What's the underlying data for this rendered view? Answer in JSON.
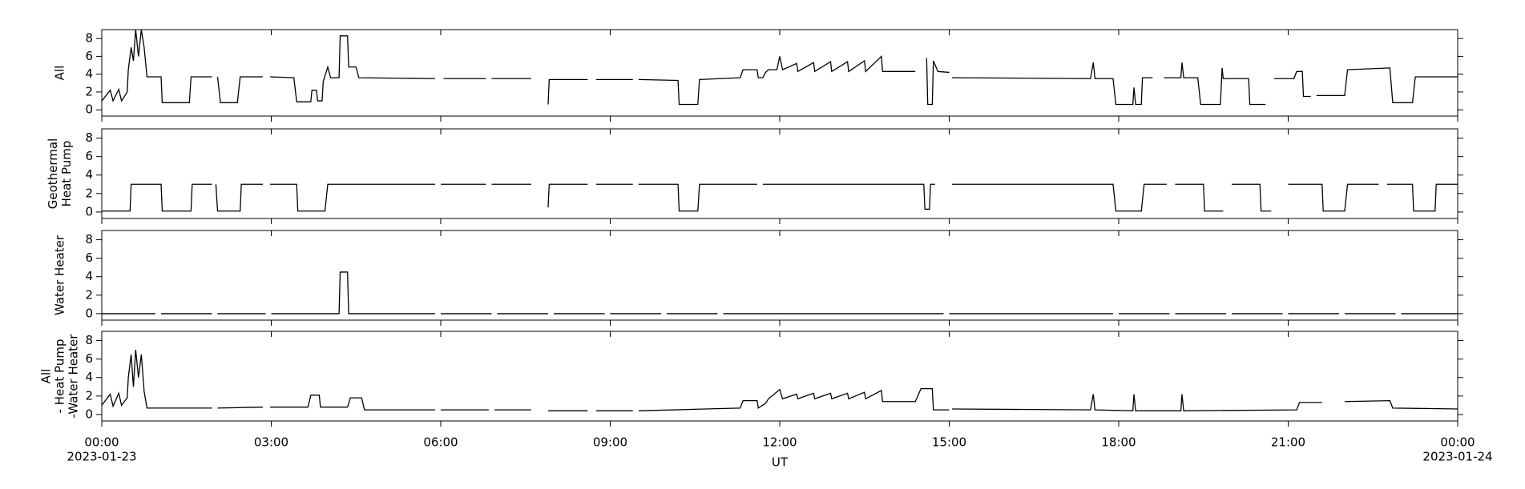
{
  "chart_data": [
    {
      "type": "line",
      "ylabel": [
        "All"
      ],
      "ylim": [
        -0.7,
        9
      ],
      "yticks": [
        0,
        2,
        4,
        6,
        8
      ],
      "color": "#000000",
      "x": [
        0,
        0.15,
        0.2,
        0.3,
        0.35,
        0.45,
        0.47,
        0.52,
        0.56,
        0.6,
        0.65,
        0.7,
        0.75,
        0.8,
        1.05,
        1.07,
        1.55,
        1.58,
        1.95,
        2.0,
        2.05,
        2.1,
        2.4,
        2.45,
        2.85,
        2.9,
        2.98,
        3.4,
        3.45,
        3.7,
        3.72,
        3.8,
        3.82,
        3.9,
        3.92,
        4.0,
        4.05,
        4.2,
        4.22,
        4.35,
        4.37,
        4.5,
        4.55,
        5.9,
        6.0,
        6.05,
        6.8,
        6.85,
        6.9,
        7.6,
        7.65,
        7.9,
        7.92,
        8.6,
        8.65,
        8.75,
        9.4,
        9.45,
        9.5,
        10.2,
        10.22,
        10.55,
        10.58,
        11.3,
        11.35,
        11.6,
        11.62,
        11.7,
        11.75,
        11.8,
        11.95,
        12.0,
        12.05,
        12.3,
        12.32,
        12.6,
        12.62,
        12.9,
        12.92,
        13.2,
        13.22,
        13.5,
        13.52,
        13.8,
        13.82,
        14.4,
        14.45,
        14.6,
        14.62,
        14.7,
        14.72,
        14.8,
        15.0,
        15.02,
        15.05,
        17.5,
        17.55,
        17.58,
        17.9,
        17.95,
        18.25,
        18.27,
        18.3,
        18.4,
        18.42,
        18.6,
        18.7,
        18.8,
        19.1,
        19.12,
        19.15,
        19.4,
        19.45,
        19.8,
        19.83,
        19.85,
        20.3,
        20.32,
        20.6,
        20.7,
        20.75,
        21.1,
        21.15,
        21.25,
        21.27,
        21.4,
        21.45,
        21.5,
        22.0,
        22.05,
        22.8,
        22.85,
        23.2,
        23.25,
        24
      ],
      "values": [
        1.0,
        2.2,
        1.0,
        2.3,
        1.0,
        2.0,
        4.5,
        7,
        5.5,
        9,
        6,
        9,
        7,
        3.7,
        3.7,
        0.8,
        0.8,
        3.7,
        3.7,
        null,
        3.7,
        0.8,
        0.8,
        3.7,
        3.7,
        null,
        3.7,
        3.6,
        0.9,
        0.9,
        2.2,
        2.2,
        1.0,
        1.0,
        3.2,
        4.8,
        3.6,
        3.6,
        8.3,
        8.3,
        4.8,
        4.8,
        3.6,
        3.5,
        null,
        3.5,
        3.5,
        null,
        3.5,
        3.5,
        null,
        0.6,
        3.4,
        3.4,
        null,
        3.4,
        3.4,
        null,
        3.4,
        3.3,
        0.6,
        0.6,
        3.4,
        3.6,
        4.5,
        4.5,
        3.6,
        3.6,
        4.2,
        4.5,
        4.5,
        6,
        4.5,
        5.2,
        4.3,
        5.3,
        4.3,
        5.4,
        4.3,
        5.4,
        4.3,
        5.5,
        4.3,
        6,
        4.3,
        4.3,
        null,
        5.8,
        0.6,
        0.6,
        5.5,
        4.3,
        4.2,
        null,
        3.6,
        3.5,
        5.3,
        3.5,
        3.5,
        0.6,
        0.6,
        2.5,
        0.6,
        0.6,
        3.6,
        3.6,
        null,
        3.6,
        3.6,
        5.3,
        3.6,
        3.6,
        0.6,
        0.6,
        4.7,
        3.5,
        3.5,
        0.6,
        0.6,
        null,
        3.5,
        3.5,
        4.3,
        4.3,
        1.5,
        1.5,
        null,
        1.6,
        1.6,
        4.5,
        4.7,
        0.8,
        0.8,
        3.7,
        3.7
      ]
    },
    {
      "type": "line",
      "ylabel": [
        "Geothermal",
        "Heat Pump"
      ],
      "ylim": [
        -0.7,
        9
      ],
      "yticks": [
        0,
        2,
        4,
        6,
        8
      ],
      "color": "#000000",
      "x": [
        0,
        0.5,
        0.52,
        1.05,
        1.07,
        1.58,
        1.6,
        1.95,
        1.98,
        2.02,
        2.05,
        2.45,
        2.47,
        2.85,
        2.9,
        2.98,
        3.45,
        3.47,
        3.95,
        4.0,
        5.9,
        5.95,
        6.0,
        6.8,
        6.85,
        6.9,
        7.6,
        7.7,
        7.9,
        7.92,
        8.6,
        8.65,
        8.75,
        9.4,
        9.45,
        9.5,
        10.2,
        10.22,
        10.55,
        10.58,
        11.6,
        11.65,
        11.7,
        14.55,
        14.57,
        14.65,
        14.67,
        14.75,
        14.9,
        15.05,
        17.9,
        17.95,
        18.4,
        18.45,
        18.85,
        18.9,
        19.0,
        19.5,
        19.52,
        19.85,
        19.9,
        20.0,
        20.5,
        20.52,
        20.7,
        20.8,
        21.0,
        21.6,
        21.62,
        22.0,
        22.05,
        22.6,
        22.7,
        22.75,
        23.2,
        23.22,
        23.6,
        23.62,
        24
      ],
      "values": [
        0.1,
        0.1,
        3,
        3,
        0.1,
        0.1,
        3,
        3,
        null,
        3,
        0.1,
        0.1,
        3,
        3,
        null,
        3,
        3,
        0.1,
        0.1,
        3,
        3,
        null,
        3,
        3,
        null,
        3,
        3,
        null,
        0.5,
        3,
        3,
        null,
        3,
        3,
        null,
        3,
        3,
        0.1,
        0.1,
        3,
        3,
        null,
        3,
        3,
        0.3,
        0.3,
        3,
        3,
        null,
        3,
        3,
        0.1,
        0.1,
        3,
        3,
        null,
        3,
        3,
        0.1,
        0.1,
        null,
        3,
        3,
        0.1,
        0.1,
        null,
        3,
        3,
        0.1,
        0.1,
        3,
        3,
        null,
        3,
        3,
        0.1,
        0.1,
        3,
        3
      ]
    },
    {
      "type": "line",
      "ylabel": [
        "Water Heater"
      ],
      "ylim": [
        -0.7,
        9
      ],
      "yticks": [
        0,
        2,
        4,
        6,
        8
      ],
      "color": "#000000",
      "x": [
        0,
        0.95,
        1.0,
        1.05,
        1.95,
        2.0,
        2.05,
        2.9,
        2.95,
        3.0,
        4.2,
        4.22,
        4.35,
        4.37,
        5.9,
        5.95,
        6.0,
        6.9,
        6.95,
        7.0,
        7.9,
        7.95,
        8.0,
        8.9,
        8.95,
        9.0,
        9.9,
        9.95,
        10.0,
        10.9,
        10.95,
        11.0,
        14.9,
        14.95,
        15.0,
        17.9,
        17.95,
        18.0,
        18.9,
        18.95,
        19.0,
        19.9,
        19.95,
        20.0,
        20.9,
        20.95,
        21.0,
        21.9,
        21.95,
        22.0,
        22.9,
        22.95,
        23.0,
        24
      ],
      "values": [
        0,
        0,
        null,
        0,
        0,
        null,
        0,
        0,
        null,
        0,
        0,
        4.5,
        4.5,
        0,
        0,
        null,
        0,
        0,
        null,
        0,
        0,
        null,
        0,
        0,
        null,
        0,
        0,
        null,
        0,
        0,
        null,
        0,
        0,
        null,
        0,
        0,
        null,
        0,
        0,
        null,
        0,
        0,
        null,
        0,
        0,
        null,
        0,
        0,
        null,
        0,
        0,
        null,
        0,
        0
      ]
    },
    {
      "type": "line",
      "ylabel": [
        "All",
        "- Heat Pump",
        "-Water Heater"
      ],
      "ylim": [
        -0.7,
        9
      ],
      "yticks": [
        0,
        2,
        4,
        6,
        8
      ],
      "color": "#000000",
      "xlabel": "UT",
      "xlim": [
        0,
        24
      ],
      "xticks": [
        {
          "value": 0,
          "label": "00:00"
        },
        {
          "value": 3,
          "label": "03:00"
        },
        {
          "value": 6,
          "label": "06:00"
        },
        {
          "value": 9,
          "label": "09:00"
        },
        {
          "value": 12,
          "label": "12:00"
        },
        {
          "value": 15,
          "label": "15:00"
        },
        {
          "value": 18,
          "label": "18:00"
        },
        {
          "value": 21,
          "label": "21:00"
        },
        {
          "value": 24,
          "label": "00:00"
        }
      ],
      "date_labels": [
        {
          "value": 0,
          "label": "2023-01-23"
        },
        {
          "value": 24,
          "label": "2023-01-24"
        }
      ],
      "x": [
        0,
        0.15,
        0.2,
        0.3,
        0.35,
        0.45,
        0.47,
        0.52,
        0.56,
        0.6,
        0.65,
        0.7,
        0.75,
        0.8,
        1.95,
        2.0,
        2.05,
        2.85,
        2.9,
        2.98,
        3.65,
        3.7,
        3.85,
        3.87,
        4.35,
        4.4,
        4.6,
        4.65,
        5.9,
        5.95,
        6.0,
        6.85,
        6.9,
        6.95,
        7.6,
        7.7,
        7.9,
        8.6,
        8.7,
        8.75,
        9.4,
        9.45,
        9.5,
        11.3,
        11.35,
        11.6,
        11.62,
        11.75,
        11.8,
        12.0,
        12.05,
        12.3,
        12.32,
        12.6,
        12.62,
        12.9,
        12.92,
        13.2,
        13.22,
        13.5,
        13.52,
        13.8,
        13.82,
        14.4,
        14.5,
        14.7,
        14.72,
        15.0,
        15.02,
        15.05,
        17.5,
        17.55,
        17.58,
        18.25,
        18.27,
        18.3,
        19.1,
        19.12,
        19.15,
        21.15,
        21.2,
        21.6,
        21.7,
        22.0,
        22.8,
        22.85,
        24
      ],
      "values": [
        1.0,
        2.2,
        0.9,
        2.3,
        1.0,
        1.8,
        4,
        6.5,
        3,
        7,
        4,
        6.5,
        2.5,
        0.7,
        0.7,
        null,
        0.7,
        0.8,
        null,
        0.8,
        0.8,
        2.1,
        2.1,
        0.8,
        0.8,
        1.8,
        1.8,
        0.5,
        0.5,
        null,
        0.5,
        0.5,
        null,
        0.5,
        0.5,
        null,
        0.4,
        0.4,
        null,
        0.4,
        0.4,
        null,
        0.4,
        0.7,
        1.5,
        1.5,
        0.7,
        1.2,
        1.7,
        2.7,
        1.7,
        2.2,
        1.7,
        2.3,
        1.7,
        2.3,
        1.7,
        2.3,
        1.7,
        2.4,
        1.7,
        2.6,
        1.4,
        1.4,
        2.8,
        2.8,
        0.5,
        0.5,
        null,
        0.6,
        0.5,
        2.2,
        0.5,
        0.4,
        2.2,
        0.4,
        0.4,
        2.2,
        0.4,
        0.5,
        1.3,
        1.3,
        null,
        1.4,
        1.5,
        0.7,
        0.6
      ]
    }
  ]
}
